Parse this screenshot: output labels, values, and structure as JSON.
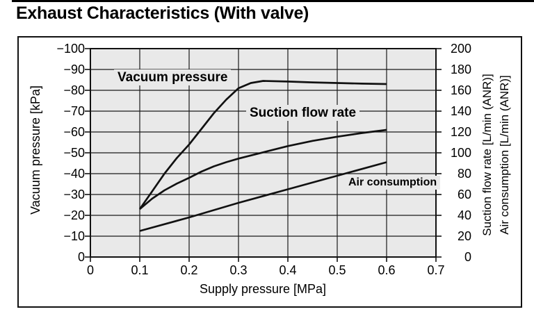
{
  "chart_data": {
    "type": "line",
    "title": "Exhaust Characteristics (With valve)",
    "xlabel": "Supply pressure [MPa]",
    "ylabel_left": "Vacuum pressure [kPa]",
    "ylabel_right_suction": "Suction flow rate [L/min (ANR)]",
    "ylabel_right_air": "Air consumption [L/min (ANR)]",
    "xlim": [
      0,
      0.7
    ],
    "ylim_left": [
      0,
      -100
    ],
    "ylim_right": [
      0,
      200
    ],
    "x_ticks": [
      "0",
      "0.1",
      "0.2",
      "0.3",
      "0.4",
      "0.5",
      "0.6",
      "0.7"
    ],
    "y_ticks_left": [
      "−100",
      "−90",
      "−80",
      "−70",
      "−60",
      "−50",
      "−40",
      "−30",
      "−20",
      "−10",
      "0"
    ],
    "y_ticks_right": [
      "200",
      "180",
      "160",
      "140",
      "120",
      "100",
      "80",
      "60",
      "40",
      "20",
      "0"
    ],
    "grid": true,
    "legend_position": "inline-labels",
    "plot_bg": "#e9e9e9",
    "line_color": "#111111",
    "series": [
      {
        "name": "Vacuum pressure",
        "axis": "left",
        "unit": "kPa",
        "x": [
          0.1,
          0.125,
          0.15,
          0.175,
          0.2,
          0.225,
          0.25,
          0.275,
          0.3,
          0.325,
          0.35,
          0.4,
          0.45,
          0.5,
          0.55,
          0.6
        ],
        "y": [
          -23,
          -31.5,
          -40,
          -47.5,
          -54,
          -61.5,
          -69,
          -75.5,
          -81,
          -83.5,
          -84.5,
          -84.2,
          -83.8,
          -83.5,
          -83.2,
          -83
        ]
      },
      {
        "name": "Suction flow rate",
        "axis": "right",
        "unit": "L/min (ANR)",
        "x": [
          0.1,
          0.125,
          0.15,
          0.175,
          0.2,
          0.225,
          0.25,
          0.275,
          0.3,
          0.35,
          0.4,
          0.45,
          0.5,
          0.55,
          0.6
        ],
        "y": [
          46,
          56,
          64,
          70.5,
          76,
          82,
          87,
          91,
          94.5,
          100.5,
          106.5,
          111.5,
          115.5,
          119,
          122
        ]
      },
      {
        "name": "Air consumption",
        "axis": "right",
        "unit": "L/min (ANR)",
        "x": [
          0.1,
          0.2,
          0.3,
          0.4,
          0.5,
          0.6
        ],
        "y": [
          25,
          38,
          52,
          65,
          78,
          91
        ]
      }
    ]
  }
}
